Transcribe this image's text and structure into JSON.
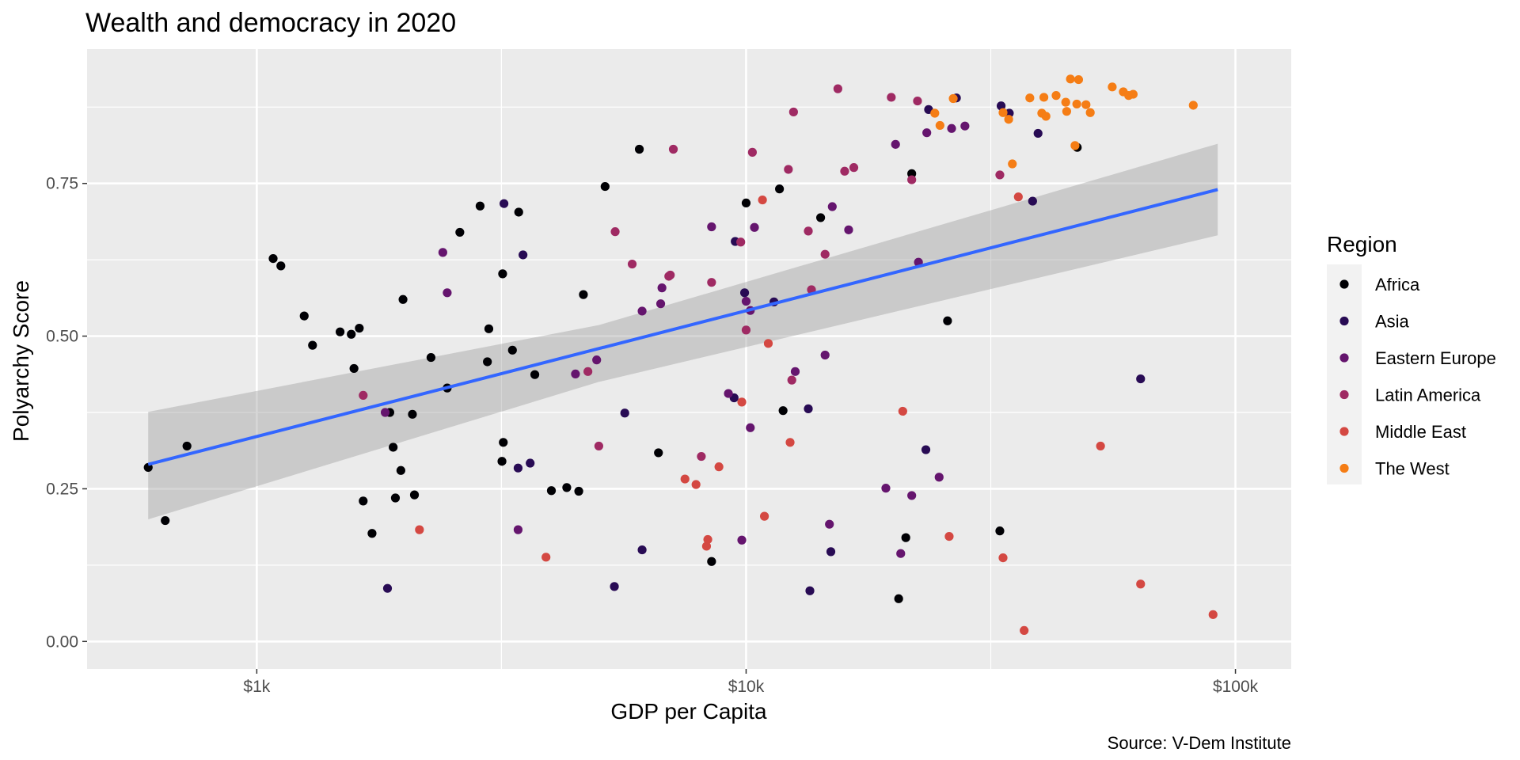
{
  "chart_data": {
    "type": "scatter",
    "title": "Wealth and democracy in 2020",
    "xlabel": "GDP per Capita",
    "ylabel": "Polyarchy Score",
    "caption": "Source: V-Dem Institute",
    "x_scale": "log10",
    "xlim": [
      450,
      130000
    ],
    "ylim": [
      -0.045,
      0.97
    ],
    "x_ticks": [
      {
        "value": 1000,
        "label": "$1k"
      },
      {
        "value": 10000,
        "label": "$10k"
      },
      {
        "value": 100000,
        "label": "$100k"
      }
    ],
    "x_minor_ticks": [
      3162,
      31623
    ],
    "y_ticks": [
      {
        "value": 0,
        "label": "0.00"
      },
      {
        "value": 0.25,
        "label": "0.25"
      },
      {
        "value": 0.5,
        "label": "0.50"
      },
      {
        "value": 0.75,
        "label": "0.75"
      }
    ],
    "y_minor_ticks": [
      0.125,
      0.375,
      0.625,
      0.875
    ],
    "grid": true,
    "legend": {
      "title": "Region",
      "position": "right"
    },
    "regions": [
      {
        "name": "Africa",
        "color": "#000004"
      },
      {
        "name": "Asia",
        "color": "#280B54"
      },
      {
        "name": "Eastern Europe",
        "color": "#65156E"
      },
      {
        "name": "Latin America",
        "color": "#9F2A63"
      },
      {
        "name": "Middle East",
        "color": "#D44842"
      },
      {
        "name": "The West",
        "color": "#F57D15"
      }
    ],
    "trend_line": {
      "method": "lm",
      "color": "#3366FF",
      "ribbon_color": "#999999",
      "points": [
        {
          "x": 600,
          "y": 0.29,
          "lo": 0.2,
          "hi": 0.376
        },
        {
          "x": 5000,
          "y": 0.47,
          "lo": 0.425,
          "hi": 0.518
        },
        {
          "x": 92000,
          "y": 0.74,
          "lo": 0.665,
          "hi": 0.815
        }
      ]
    },
    "series": [
      {
        "name": "Africa",
        "points": [
          {
            "x": 600,
            "y": 0.285
          },
          {
            "x": 650,
            "y": 0.198
          },
          {
            "x": 720,
            "y": 0.32
          },
          {
            "x": 1080,
            "y": 0.627
          },
          {
            "x": 1120,
            "y": 0.615
          },
          {
            "x": 1250,
            "y": 0.533
          },
          {
            "x": 1300,
            "y": 0.485
          },
          {
            "x": 1480,
            "y": 0.507
          },
          {
            "x": 1560,
            "y": 0.503
          },
          {
            "x": 1620,
            "y": 0.513
          },
          {
            "x": 1580,
            "y": 0.447
          },
          {
            "x": 1650,
            "y": 0.23
          },
          {
            "x": 1720,
            "y": 0.177
          },
          {
            "x": 1870,
            "y": 0.375
          },
          {
            "x": 1900,
            "y": 0.318
          },
          {
            "x": 1920,
            "y": 0.235
          },
          {
            "x": 1970,
            "y": 0.28
          },
          {
            "x": 1990,
            "y": 0.56
          },
          {
            "x": 2080,
            "y": 0.372
          },
          {
            "x": 2100,
            "y": 0.24
          },
          {
            "x": 2270,
            "y": 0.465
          },
          {
            "x": 2450,
            "y": 0.415
          },
          {
            "x": 2600,
            "y": 0.67
          },
          {
            "x": 2860,
            "y": 0.713
          },
          {
            "x": 2960,
            "y": 0.458
          },
          {
            "x": 2980,
            "y": 0.512
          },
          {
            "x": 3180,
            "y": 0.602
          },
          {
            "x": 3190,
            "y": 0.326
          },
          {
            "x": 3170,
            "y": 0.295
          },
          {
            "x": 3330,
            "y": 0.477
          },
          {
            "x": 3430,
            "y": 0.703
          },
          {
            "x": 3700,
            "y": 0.437
          },
          {
            "x": 4000,
            "y": 0.247
          },
          {
            "x": 4300,
            "y": 0.252
          },
          {
            "x": 4550,
            "y": 0.246
          },
          {
            "x": 4650,
            "y": 0.568
          },
          {
            "x": 5150,
            "y": 0.745
          },
          {
            "x": 6050,
            "y": 0.806
          },
          {
            "x": 6620,
            "y": 0.309
          },
          {
            "x": 8500,
            "y": 0.131
          },
          {
            "x": 10000,
            "y": 0.718
          },
          {
            "x": 11700,
            "y": 0.741
          },
          {
            "x": 11900,
            "y": 0.378
          },
          {
            "x": 14200,
            "y": 0.694
          },
          {
            "x": 21200,
            "y": 0.17
          },
          {
            "x": 20500,
            "y": 0.07
          },
          {
            "x": 21800,
            "y": 0.766
          },
          {
            "x": 25800,
            "y": 0.525
          },
          {
            "x": 33000,
            "y": 0.181
          },
          {
            "x": 47500,
            "y": 0.809
          }
        ]
      },
      {
        "name": "Asia",
        "points": [
          {
            "x": 3200,
            "y": 0.717
          },
          {
            "x": 3500,
            "y": 0.633
          },
          {
            "x": 3420,
            "y": 0.284
          },
          {
            "x": 3620,
            "y": 0.292
          },
          {
            "x": 1850,
            "y": 0.087
          },
          {
            "x": 5380,
            "y": 0.09
          },
          {
            "x": 5650,
            "y": 0.374
          },
          {
            "x": 6130,
            "y": 0.15
          },
          {
            "x": 9500,
            "y": 0.655
          },
          {
            "x": 9930,
            "y": 0.571
          },
          {
            "x": 9450,
            "y": 0.399
          },
          {
            "x": 11400,
            "y": 0.556
          },
          {
            "x": 13400,
            "y": 0.381
          },
          {
            "x": 13500,
            "y": 0.083
          },
          {
            "x": 14900,
            "y": 0.147
          },
          {
            "x": 23300,
            "y": 0.314
          },
          {
            "x": 23600,
            "y": 0.871
          },
          {
            "x": 26900,
            "y": 0.89
          },
          {
            "x": 33200,
            "y": 0.877
          },
          {
            "x": 34500,
            "y": 0.865
          },
          {
            "x": 39500,
            "y": 0.832
          },
          {
            "x": 38500,
            "y": 0.721
          },
          {
            "x": 64000,
            "y": 0.43
          }
        ]
      },
      {
        "name": "Eastern Europe",
        "points": [
          {
            "x": 2400,
            "y": 0.637
          },
          {
            "x": 2450,
            "y": 0.571
          },
          {
            "x": 1830,
            "y": 0.375
          },
          {
            "x": 3420,
            "y": 0.183
          },
          {
            "x": 4480,
            "y": 0.438
          },
          {
            "x": 4950,
            "y": 0.461
          },
          {
            "x": 6130,
            "y": 0.541
          },
          {
            "x": 6690,
            "y": 0.553
          },
          {
            "x": 6730,
            "y": 0.579
          },
          {
            "x": 8500,
            "y": 0.679
          },
          {
            "x": 9200,
            "y": 0.406
          },
          {
            "x": 9800,
            "y": 0.166
          },
          {
            "x": 10200,
            "y": 0.35
          },
          {
            "x": 10400,
            "y": 0.678
          },
          {
            "x": 10200,
            "y": 0.542
          },
          {
            "x": 10000,
            "y": 0.557
          },
          {
            "x": 12600,
            "y": 0.442
          },
          {
            "x": 14500,
            "y": 0.469
          },
          {
            "x": 15000,
            "y": 0.712
          },
          {
            "x": 14800,
            "y": 0.192
          },
          {
            "x": 16200,
            "y": 0.674
          },
          {
            "x": 19300,
            "y": 0.251
          },
          {
            "x": 20200,
            "y": 0.814
          },
          {
            "x": 21800,
            "y": 0.239
          },
          {
            "x": 20700,
            "y": 0.144
          },
          {
            "x": 23400,
            "y": 0.833
          },
          {
            "x": 24800,
            "y": 0.269
          },
          {
            "x": 26300,
            "y": 0.84
          },
          {
            "x": 28000,
            "y": 0.844
          },
          {
            "x": 22500,
            "y": 0.621
          }
        ]
      },
      {
        "name": "Latin America",
        "points": [
          {
            "x": 1650,
            "y": 0.403
          },
          {
            "x": 4750,
            "y": 0.442
          },
          {
            "x": 5000,
            "y": 0.32
          },
          {
            "x": 5400,
            "y": 0.671
          },
          {
            "x": 5850,
            "y": 0.618
          },
          {
            "x": 7000,
            "y": 0.6
          },
          {
            "x": 6950,
            "y": 0.598
          },
          {
            "x": 7100,
            "y": 0.806
          },
          {
            "x": 8100,
            "y": 0.303
          },
          {
            "x": 8500,
            "y": 0.588
          },
          {
            "x": 9750,
            "y": 0.654
          },
          {
            "x": 10300,
            "y": 0.801
          },
          {
            "x": 10000,
            "y": 0.51
          },
          {
            "x": 12200,
            "y": 0.773
          },
          {
            "x": 12500,
            "y": 0.867
          },
          {
            "x": 13400,
            "y": 0.672
          },
          {
            "x": 12400,
            "y": 0.428
          },
          {
            "x": 13600,
            "y": 0.576
          },
          {
            "x": 14500,
            "y": 0.634
          },
          {
            "x": 15400,
            "y": 0.905
          },
          {
            "x": 15900,
            "y": 0.77
          },
          {
            "x": 16600,
            "y": 0.776
          },
          {
            "x": 19800,
            "y": 0.891
          },
          {
            "x": 21800,
            "y": 0.756
          },
          {
            "x": 22400,
            "y": 0.885
          },
          {
            "x": 33000,
            "y": 0.764
          }
        ]
      },
      {
        "name": "Middle East",
        "points": [
          {
            "x": 2150,
            "y": 0.183
          },
          {
            "x": 3900,
            "y": 0.138
          },
          {
            "x": 7500,
            "y": 0.266
          },
          {
            "x": 7900,
            "y": 0.257
          },
          {
            "x": 8800,
            "y": 0.286
          },
          {
            "x": 8350,
            "y": 0.167
          },
          {
            "x": 8300,
            "y": 0.156
          },
          {
            "x": 9800,
            "y": 0.392
          },
          {
            "x": 10800,
            "y": 0.723
          },
          {
            "x": 11100,
            "y": 0.488
          },
          {
            "x": 10900,
            "y": 0.205
          },
          {
            "x": 12300,
            "y": 0.326
          },
          {
            "x": 20900,
            "y": 0.377
          },
          {
            "x": 26000,
            "y": 0.172
          },
          {
            "x": 33500,
            "y": 0.137
          },
          {
            "x": 36000,
            "y": 0.728
          },
          {
            "x": 37000,
            "y": 0.018
          },
          {
            "x": 53000,
            "y": 0.32
          },
          {
            "x": 64000,
            "y": 0.094
          },
          {
            "x": 90000,
            "y": 0.044
          }
        ]
      },
      {
        "name": "The West",
        "points": [
          {
            "x": 24300,
            "y": 0.865
          },
          {
            "x": 24900,
            "y": 0.845
          },
          {
            "x": 26500,
            "y": 0.889
          },
          {
            "x": 33500,
            "y": 0.866
          },
          {
            "x": 34400,
            "y": 0.855
          },
          {
            "x": 35000,
            "y": 0.782
          },
          {
            "x": 38000,
            "y": 0.89
          },
          {
            "x": 40200,
            "y": 0.865
          },
          {
            "x": 40600,
            "y": 0.891
          },
          {
            "x": 41000,
            "y": 0.86
          },
          {
            "x": 43000,
            "y": 0.894
          },
          {
            "x": 45000,
            "y": 0.883
          },
          {
            "x": 45200,
            "y": 0.868
          },
          {
            "x": 46000,
            "y": 0.921
          },
          {
            "x": 47000,
            "y": 0.812
          },
          {
            "x": 47800,
            "y": 0.92
          },
          {
            "x": 47400,
            "y": 0.88
          },
          {
            "x": 49500,
            "y": 0.879
          },
          {
            "x": 50500,
            "y": 0.866
          },
          {
            "x": 56000,
            "y": 0.908
          },
          {
            "x": 59000,
            "y": 0.9
          },
          {
            "x": 60500,
            "y": 0.894
          },
          {
            "x": 61800,
            "y": 0.896
          },
          {
            "x": 82000,
            "y": 0.878
          }
        ]
      }
    ]
  }
}
